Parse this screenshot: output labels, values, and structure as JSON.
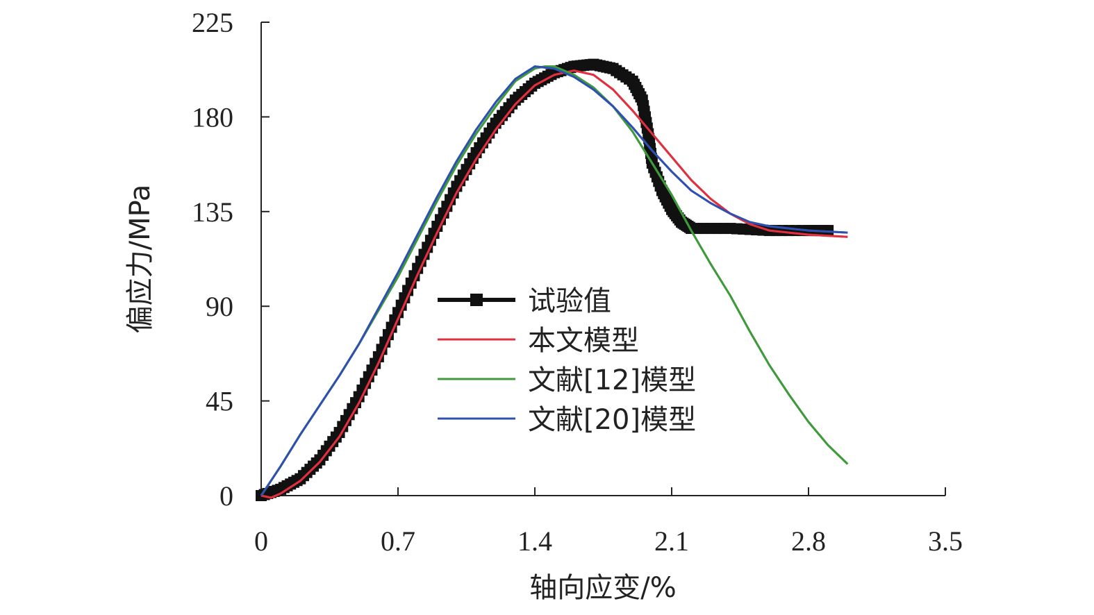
{
  "chart_data": {
    "type": "line",
    "title": "",
    "xlabel": "轴向应变/%",
    "ylabel": "偏应力/MPa",
    "xlim": [
      0,
      3.5
    ],
    "ylim": [
      0,
      225
    ],
    "xticks": [
      "0",
      "0.7",
      "1.4",
      "2.1",
      "2.8",
      "3.5"
    ],
    "xtick_values": [
      0,
      0.7,
      1.4,
      2.1,
      2.8,
      3.5
    ],
    "yticks": [
      "0",
      "45",
      "90",
      "135",
      "180",
      "225"
    ],
    "ytick_values": [
      0,
      45,
      90,
      135,
      180,
      225
    ],
    "grid": false,
    "legend_position": "center",
    "series": [
      {
        "name": "试验值",
        "color": "#111111",
        "marker": "square",
        "x": [
          0,
          0.1,
          0.2,
          0.3,
          0.4,
          0.5,
          0.6,
          0.7,
          0.8,
          0.9,
          1.0,
          1.1,
          1.2,
          1.3,
          1.4,
          1.5,
          1.6,
          1.7,
          1.8,
          1.9,
          1.95,
          1.98,
          2.0,
          2.05,
          2.1,
          2.15,
          2.2,
          2.4,
          2.6,
          2.8,
          2.9
        ],
        "y": [
          0,
          3,
          8,
          17,
          30,
          47,
          66,
          87,
          108,
          128,
          147,
          163,
          177,
          188,
          196,
          201,
          204,
          205,
          203,
          197,
          188,
          172,
          158,
          145,
          136,
          130,
          127,
          127,
          126,
          126,
          126
        ]
      },
      {
        "name": "本文模型",
        "color": "#e0303f",
        "marker": "none",
        "x": [
          0,
          0.05,
          0.1,
          0.2,
          0.3,
          0.4,
          0.5,
          0.6,
          0.7,
          0.8,
          0.9,
          1.0,
          1.1,
          1.2,
          1.3,
          1.4,
          1.5,
          1.6,
          1.7,
          1.8,
          1.9,
          2.0,
          2.1,
          2.2,
          2.3,
          2.4,
          2.5,
          2.6,
          2.8,
          3.0
        ],
        "y": [
          0,
          -1,
          1,
          7,
          16,
          28,
          44,
          63,
          84,
          105,
          125,
          144,
          160,
          174,
          186,
          195,
          200,
          202,
          200,
          193,
          183,
          172,
          161,
          150,
          141,
          134,
          129,
          126,
          124,
          123
        ]
      },
      {
        "name": "文献[12]模型",
        "color": "#3f9a3c",
        "marker": "none",
        "x": [
          0,
          0.1,
          0.2,
          0.3,
          0.4,
          0.5,
          0.6,
          0.7,
          0.8,
          0.9,
          1.0,
          1.1,
          1.2,
          1.3,
          1.4,
          1.45,
          1.5,
          1.6,
          1.7,
          1.8,
          1.9,
          2.0,
          2.1,
          2.2,
          2.3,
          2.4,
          2.5,
          2.6,
          2.7,
          2.8,
          2.9,
          3.0
        ],
        "y": [
          0,
          14,
          29,
          43,
          57,
          72,
          88,
          104,
          122,
          140,
          157,
          172,
          185,
          197,
          203,
          204,
          204,
          200,
          194,
          185,
          173,
          158,
          143,
          126,
          110,
          95,
          78,
          62,
          48,
          35,
          24,
          15
        ]
      },
      {
        "name": "文献[20]模型",
        "color": "#3050b0",
        "marker": "none",
        "x": [
          0,
          0.1,
          0.2,
          0.3,
          0.4,
          0.5,
          0.6,
          0.7,
          0.8,
          0.9,
          1.0,
          1.1,
          1.2,
          1.3,
          1.4,
          1.5,
          1.6,
          1.7,
          1.8,
          1.9,
          2.0,
          2.1,
          2.2,
          2.3,
          2.4,
          2.5,
          2.6,
          2.8,
          3.0
        ],
        "y": [
          0,
          14,
          29,
          43,
          57,
          72,
          89,
          106,
          124,
          142,
          159,
          174,
          187,
          198,
          204,
          203,
          199,
          193,
          185,
          175,
          164,
          154,
          145,
          139,
          134,
          130,
          128,
          126,
          125
        ]
      }
    ]
  }
}
